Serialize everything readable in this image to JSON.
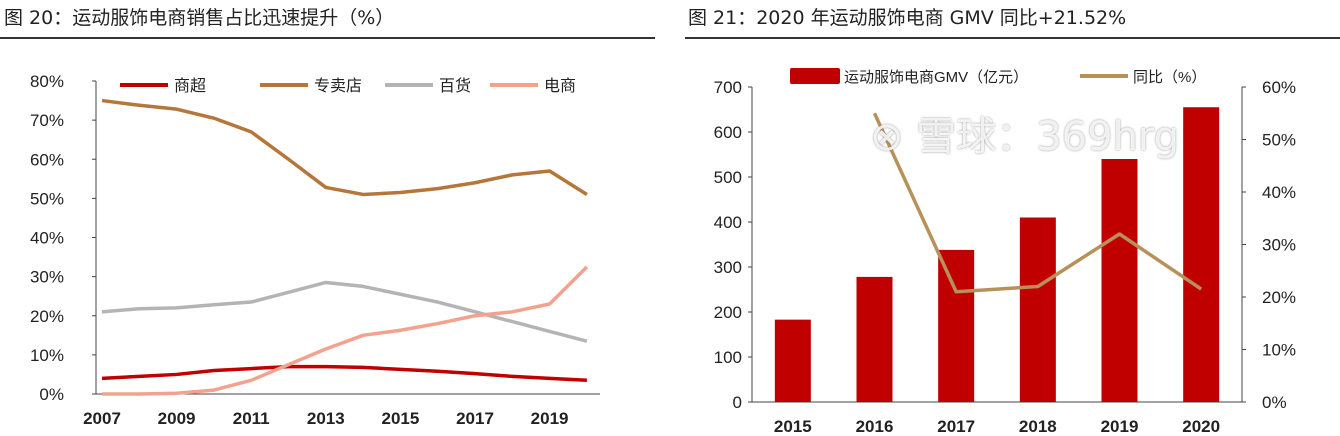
{
  "titles": {
    "left": "图 20：运动服饰电商销售占比迅速提升（%）",
    "right": "图 21：2020 年运动服饰电商 GMV 同比+21.52%"
  },
  "watermark": "⊗ 雪球：369hrg",
  "chart_data": [
    {
      "type": "line",
      "title": "运动服饰电商销售占比迅速提升（%）",
      "x": [
        2007,
        2008,
        2009,
        2010,
        2011,
        2012,
        2013,
        2014,
        2015,
        2016,
        2017,
        2018,
        2019,
        2020
      ],
      "xticks": [
        "2007",
        "2009",
        "2011",
        "2013",
        "2015",
        "2017",
        "2019"
      ],
      "yticks": [
        "0%",
        "10%",
        "20%",
        "30%",
        "40%",
        "50%",
        "60%",
        "70%",
        "80%"
      ],
      "ylim": [
        0,
        80
      ],
      "legend_position": "top",
      "series": [
        {
          "name": "商超",
          "color": "#c00000",
          "values": [
            4,
            4.5,
            5,
            6,
            6.5,
            7,
            7,
            6.8,
            6.3,
            5.8,
            5.2,
            4.5,
            4,
            3.5
          ]
        },
        {
          "name": "专卖店",
          "color": "#b5763a",
          "values": [
            75,
            73.8,
            72.8,
            70.5,
            67,
            60,
            52.8,
            51,
            51.5,
            52.5,
            54,
            56,
            57,
            51
          ]
        },
        {
          "name": "百货",
          "color": "#b4b4b4",
          "values": [
            21,
            21.8,
            22,
            22.8,
            23.5,
            26,
            28.5,
            27.5,
            25.5,
            23.5,
            21,
            18.5,
            16,
            13.5
          ]
        },
        {
          "name": "电商",
          "color": "#f2a28e",
          "values": [
            0,
            0,
            0.2,
            1,
            3.5,
            7.5,
            11.5,
            15,
            16.3,
            18,
            20,
            21,
            23,
            32.5
          ]
        }
      ]
    },
    {
      "type": "bar",
      "title": "2020 年运动服饰电商 GMV 同比+21.52%",
      "categories": [
        "2015",
        "2016",
        "2017",
        "2018",
        "2019",
        "2020"
      ],
      "yticks": [
        "0",
        "100",
        "200",
        "300",
        "400",
        "500",
        "600",
        "700"
      ],
      "y2ticks": [
        "0%",
        "10%",
        "20%",
        "30%",
        "40%",
        "50%",
        "60%"
      ],
      "ylim": [
        0,
        700
      ],
      "y2lim": [
        0,
        60
      ],
      "legend_position": "top",
      "series": [
        {
          "name": "运动服饰电商GMV（亿元）",
          "type": "bar",
          "color": "#c00000",
          "values": [
            183,
            278,
            338,
            410,
            540,
            655
          ]
        },
        {
          "name": "同比（%）",
          "type": "line",
          "axis": "right",
          "color": "#b8915a",
          "values": [
            null,
            55,
            21,
            22,
            32,
            21.52
          ]
        }
      ]
    }
  ]
}
